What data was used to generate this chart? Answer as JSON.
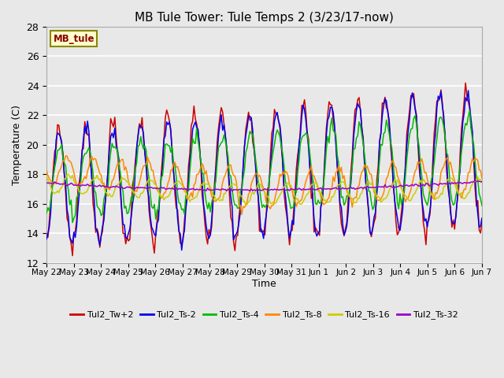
{
  "title": "MB Tule Tower: Tule Temps 2 (3/23/17-now)",
  "xlabel": "Time",
  "ylabel": "Temperature (C)",
  "ylim": [
    12,
    28
  ],
  "yticks": [
    12,
    14,
    16,
    18,
    20,
    22,
    24,
    26,
    28
  ],
  "background_color": "#e8e8e8",
  "grid_color": "#ffffff",
  "series": [
    {
      "label": "Tul2_Tw+2",
      "color": "#cc0000"
    },
    {
      "label": "Tul2_Ts-2",
      "color": "#0000ee"
    },
    {
      "label": "Tul2_Ts-4",
      "color": "#00bb00"
    },
    {
      "label": "Tul2_Ts-8",
      "color": "#ff8800"
    },
    {
      "label": "Tul2_Ts-16",
      "color": "#cccc00"
    },
    {
      "label": "Tul2_Ts-32",
      "color": "#9900cc"
    }
  ],
  "inset_label": "MB_tule",
  "inset_bg": "#ffffcc",
  "inset_fg": "#880000",
  "x_tick_labels": [
    "May 22",
    "May 23",
    "May 24",
    "May 25",
    "May 26",
    "May 27",
    "May 28",
    "May 29",
    "May 30",
    "May 31",
    "Jun 1",
    "Jun 2",
    "Jun 3",
    "Jun 4",
    "Jun 5",
    "Jun 6",
    "Jun 7"
  ]
}
